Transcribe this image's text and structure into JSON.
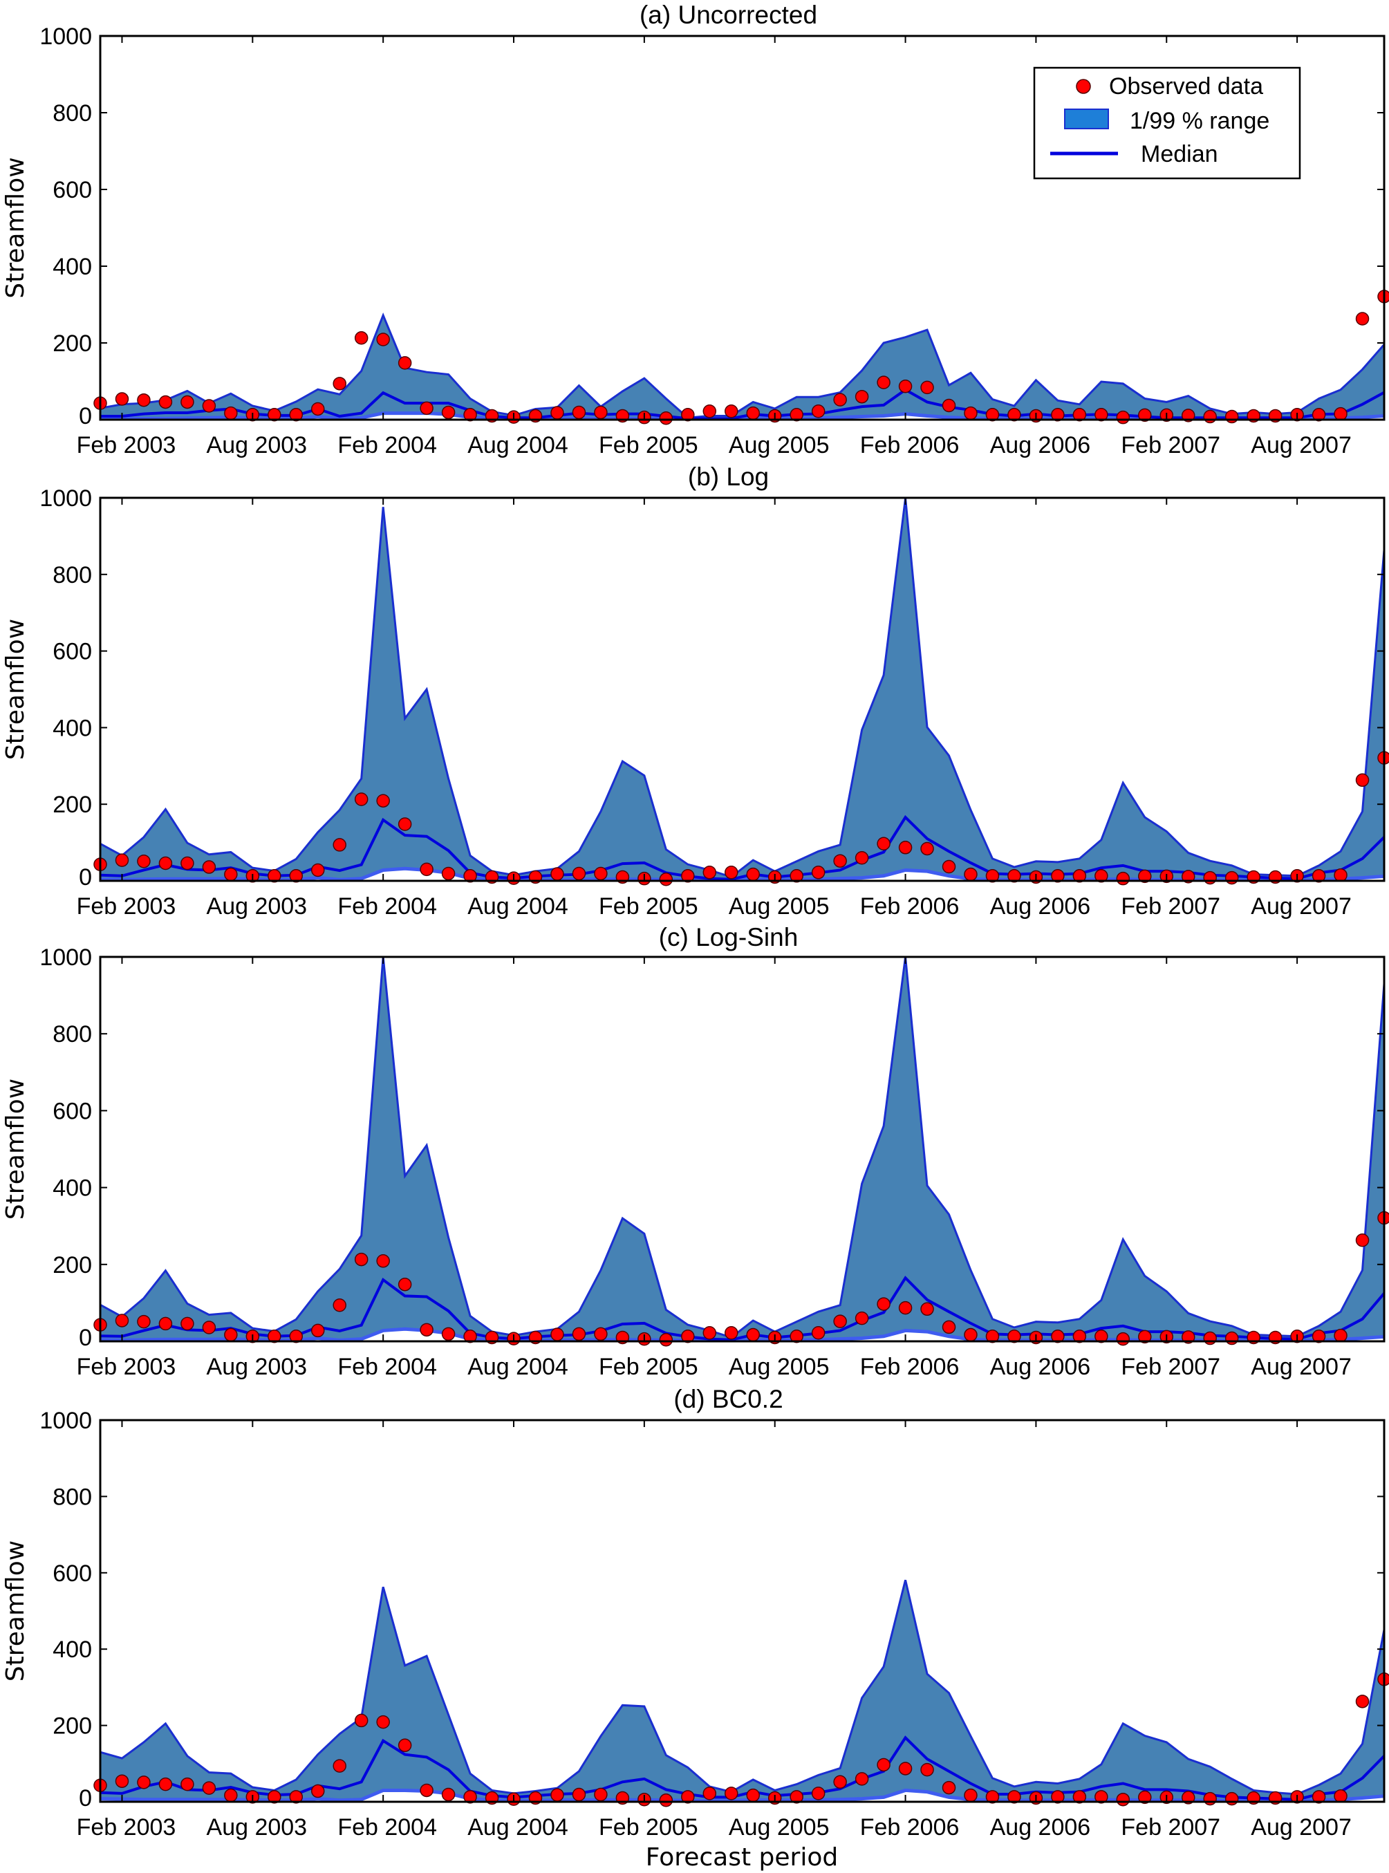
{
  "months": [
    "2003-01",
    "2003-02",
    "2003-03",
    "2003-04",
    "2003-05",
    "2003-06",
    "2003-07",
    "2003-08",
    "2003-09",
    "2003-10",
    "2003-11",
    "2003-12",
    "2004-01",
    "2004-02",
    "2004-03",
    "2004-04",
    "2004-05",
    "2004-06",
    "2004-07",
    "2004-08",
    "2004-09",
    "2004-10",
    "2004-11",
    "2004-12",
    "2005-01",
    "2005-02",
    "2005-03",
    "2005-04",
    "2005-05",
    "2005-06",
    "2005-07",
    "2005-08",
    "2005-09",
    "2005-10",
    "2005-11",
    "2005-12",
    "2006-01",
    "2006-02",
    "2006-03",
    "2006-04",
    "2006-05",
    "2006-06",
    "2006-07",
    "2006-08",
    "2006-09",
    "2006-10",
    "2006-11",
    "2006-12",
    "2007-01",
    "2007-02",
    "2007-03",
    "2007-04",
    "2007-05",
    "2007-06",
    "2007-07",
    "2007-08",
    "2007-09",
    "2007-10",
    "2007-11",
    "2007-12"
  ],
  "x_tick_labels": [
    "Feb 2003",
    "Aug 2003",
    "Feb 2004",
    "Aug 2004",
    "Feb 2005",
    "Aug 2005",
    "Feb 2006",
    "Aug 2006",
    "Feb 2007",
    "Aug 2007"
  ],
  "x_tick_months": [
    "2003-02",
    "2003-08",
    "2004-02",
    "2004-08",
    "2005-02",
    "2005-08",
    "2006-02",
    "2006-08",
    "2007-02",
    "2007-08"
  ],
  "y_ticks": [
    "0",
    "200",
    "400",
    "600",
    "800",
    "1000"
  ],
  "legend": {
    "placement": "top-right of panel (a)",
    "observed": "Observed data",
    "range": "1/99 % range",
    "median": "Median"
  },
  "colors": {
    "band_fill": "#4682b4",
    "band_edge": "#1a2fd0",
    "median": "#0000dd",
    "observed": "#ff0000",
    "legend_patch": "#1e7fd8"
  },
  "observed": [
    43,
    54,
    51,
    46,
    46,
    36,
    17,
    13,
    13,
    13,
    28,
    94,
    213,
    209,
    148,
    30,
    19,
    13,
    10,
    7,
    10,
    18,
    19,
    19,
    10,
    6,
    4,
    13,
    22,
    22,
    17,
    10,
    13,
    22,
    52,
    60,
    97,
    87,
    84,
    37,
    17,
    13,
    13,
    10,
    13,
    13,
    13,
    6,
    12,
    12,
    11,
    8,
    8,
    10,
    10,
    13,
    13,
    15,
    263,
    321
  ],
  "chart_data": [
    {
      "type": "area",
      "title": "(a)  Uncorrected",
      "ylabel": "Streamflow",
      "xlabel": "",
      "ylim": [
        0,
        1000
      ],
      "grid": false,
      "upper": [
        30,
        40,
        43,
        51,
        75,
        43,
        68,
        36,
        23,
        47,
        79,
        66,
        127,
        272,
        135,
        124,
        118,
        55,
        21,
        11,
        28,
        32,
        89,
        34,
        74,
        108,
        55,
        5,
        10,
        10,
        46,
        29,
        59,
        59,
        71,
        128,
        200,
        215,
        234,
        90,
        122,
        53,
        36,
        103,
        50,
        40,
        99,
        94,
        55,
        46,
        62,
        29,
        15,
        19,
        15,
        19,
        55,
        78,
        131,
        196
      ],
      "median": [
        9,
        9,
        15,
        18,
        18,
        24,
        28,
        15,
        11,
        11,
        28,
        9,
        17,
        70,
        43,
        43,
        43,
        24,
        9,
        5,
        5,
        11,
        17,
        13,
        15,
        15,
        9,
        3,
        3,
        3,
        14,
        10,
        14,
        15,
        25,
        34,
        38,
        78,
        46,
        33,
        25,
        14,
        10,
        15,
        10,
        12,
        14,
        12,
        8,
        5,
        5,
        5,
        5,
        5,
        5,
        5,
        14,
        15,
        40,
        71
      ],
      "lower": [
        3,
        2,
        3,
        3,
        4,
        5,
        6,
        4,
        3,
        3,
        8,
        3,
        5,
        17,
        17,
        17,
        14,
        6,
        3,
        2,
        2,
        3,
        4,
        3,
        3,
        3,
        3,
        2,
        2,
        2,
        4,
        3,
        3,
        4,
        6,
        8,
        10,
        15,
        10,
        6,
        4,
        3,
        3,
        3,
        3,
        3,
        3,
        3,
        2,
        2,
        2,
        2,
        2,
        2,
        2,
        2,
        3,
        4,
        6,
        10
      ]
    },
    {
      "type": "area",
      "title": "(b)  Log",
      "ylabel": "Streamflow",
      "xlabel": "",
      "ylim": [
        0,
        1000
      ],
      "grid": false,
      "upper": [
        97,
        66,
        114,
        187,
        99,
        69,
        75,
        34,
        26,
        57,
        127,
        185,
        267,
        976,
        424,
        500,
        267,
        66,
        25,
        15,
        25,
        32,
        77,
        181,
        312,
        275,
        82,
        43,
        28,
        10,
        54,
        25,
        51,
        77,
        94,
        394,
        537,
        999,
        401,
        327,
        185,
        58,
        36,
        51,
        49,
        58,
        107,
        256,
        166,
        129,
        73,
        52,
        40,
        17,
        15,
        13,
        40,
        77,
        181,
        864
      ],
      "median": [
        15,
        13,
        28,
        42,
        30,
        28,
        34,
        19,
        13,
        15,
        37,
        27,
        42,
        159,
        119,
        116,
        79,
        21,
        10,
        7,
        12,
        15,
        17,
        27,
        45,
        47,
        21,
        12,
        6,
        4,
        17,
        10,
        15,
        21,
        28,
        54,
        75,
        166,
        110,
        77,
        47,
        19,
        17,
        19,
        17,
        19,
        34,
        40,
        25,
        25,
        22,
        15,
        13,
        10,
        7,
        6,
        21,
        28,
        58,
        114
      ],
      "lower": [
        4,
        3,
        4,
        5,
        5,
        5,
        6,
        4,
        3,
        3,
        8,
        3,
        6,
        28,
        32,
        28,
        21,
        6,
        3,
        2,
        2,
        3,
        4,
        4,
        4,
        4,
        3,
        2,
        2,
        2,
        4,
        3,
        3,
        4,
        6,
        8,
        13,
        28,
        25,
        13,
        5,
        3,
        3,
        3,
        3,
        3,
        4,
        4,
        3,
        3,
        3,
        2,
        2,
        2,
        2,
        2,
        3,
        5,
        8,
        12
      ]
    },
    {
      "type": "area",
      "title": "(c)  Log-Sinh",
      "ylabel": "Streamflow",
      "xlabel": "",
      "ylim": [
        0,
        1000
      ],
      "grid": false,
      "upper": [
        95,
        64,
        112,
        184,
        98,
        69,
        74,
        34,
        26,
        57,
        130,
        188,
        275,
        1000,
        430,
        510,
        270,
        66,
        25,
        15,
        25,
        32,
        77,
        185,
        320,
        280,
        82,
        43,
        28,
        10,
        54,
        25,
        51,
        77,
        94,
        410,
        560,
        1000,
        405,
        330,
        185,
        58,
        36,
        51,
        49,
        58,
        107,
        265,
        170,
        130,
        73,
        52,
        40,
        17,
        15,
        13,
        40,
        77,
        185,
        930
      ],
      "median": [
        14,
        13,
        28,
        42,
        30,
        28,
        34,
        19,
        13,
        15,
        37,
        27,
        42,
        160,
        118,
        116,
        79,
        21,
        10,
        7,
        12,
        15,
        17,
        27,
        45,
        47,
        21,
        12,
        6,
        4,
        17,
        10,
        15,
        21,
        28,
        54,
        75,
        165,
        108,
        77,
        47,
        19,
        17,
        19,
        17,
        19,
        34,
        40,
        25,
        25,
        22,
        15,
        13,
        10,
        7,
        6,
        21,
        28,
        58,
        125
      ],
      "lower": [
        4,
        3,
        4,
        5,
        5,
        5,
        6,
        4,
        3,
        3,
        8,
        3,
        6,
        28,
        32,
        28,
        21,
        6,
        3,
        2,
        2,
        3,
        4,
        4,
        4,
        4,
        3,
        2,
        2,
        2,
        4,
        3,
        3,
        4,
        6,
        8,
        13,
        28,
        25,
        13,
        5,
        3,
        3,
        3,
        3,
        3,
        4,
        4,
        3,
        3,
        3,
        2,
        2,
        2,
        2,
        2,
        3,
        5,
        8,
        12
      ]
    },
    {
      "type": "area",
      "title": "(d)  BC0.2",
      "ylabel": "Streamflow",
      "xlabel": "Forecast period",
      "ylim": [
        0,
        1000
      ],
      "grid": false,
      "upper": [
        130,
        114,
        156,
        205,
        120,
        77,
        74,
        38,
        30,
        58,
        124,
        178,
        220,
        563,
        357,
        382,
        228,
        74,
        30,
        22,
        28,
        36,
        80,
        172,
        253,
        250,
        122,
        90,
        40,
        26,
        58,
        30,
        46,
        70,
        88,
        272,
        354,
        581,
        335,
        285,
        172,
        62,
        40,
        52,
        48,
        60,
        98,
        205,
        173,
        156,
        112,
        92,
        60,
        30,
        24,
        20,
        44,
        74,
        152,
        451
      ],
      "median": [
        24,
        22,
        40,
        52,
        32,
        30,
        38,
        24,
        18,
        20,
        42,
        34,
        52,
        160,
        124,
        117,
        84,
        28,
        16,
        12,
        16,
        20,
        22,
        32,
        52,
        60,
        32,
        20,
        12,
        12,
        26,
        16,
        20,
        24,
        34,
        60,
        80,
        168,
        112,
        80,
        48,
        20,
        20,
        26,
        24,
        26,
        40,
        48,
        32,
        32,
        28,
        18,
        12,
        10,
        8,
        6,
        20,
        26,
        62,
        120
      ],
      "lower": [
        8,
        7,
        6,
        6,
        6,
        6,
        6,
        5,
        4,
        4,
        8,
        4,
        6,
        30,
        30,
        28,
        22,
        8,
        4,
        3,
        3,
        4,
        5,
        5,
        5,
        5,
        4,
        3,
        3,
        3,
        5,
        4,
        4,
        5,
        6,
        8,
        12,
        30,
        26,
        12,
        6,
        4,
        4,
        4,
        4,
        4,
        5,
        5,
        4,
        4,
        4,
        3,
        3,
        3,
        3,
        3,
        4,
        6,
        10,
        15
      ]
    }
  ]
}
